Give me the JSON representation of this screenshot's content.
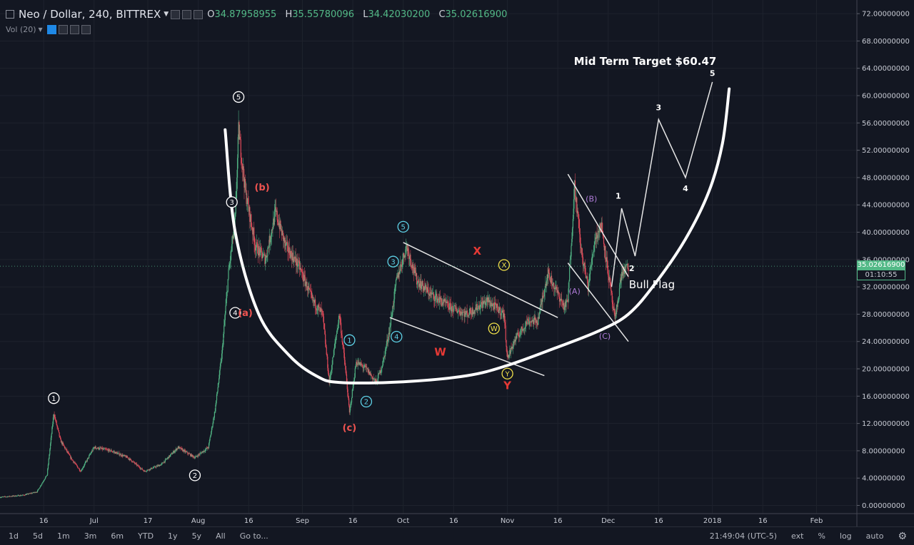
{
  "header": {
    "symbol": "Neo / Dollar, 240, BITTREX",
    "o_label": "O",
    "o_value": "34.87958955",
    "h_label": "H",
    "h_value": "35.55780096",
    "l_label": "L",
    "l_value": "34.42030200",
    "c_label": "C",
    "c_value": "35.02616900",
    "volume_label": "Vol (20)"
  },
  "price_tag": {
    "value": "35.02616900",
    "countdown": "01:10:55",
    "color": "#53b987"
  },
  "bottom_toolbar": {
    "timeframes": [
      "1d",
      "5d",
      "1m",
      "3m",
      "6m",
      "YTD",
      "1y",
      "5y",
      "All"
    ],
    "goto": "Go to...",
    "clock": "21:49:04 (UTC-5)",
    "options": [
      "ext",
      "%",
      "log",
      "auto"
    ]
  },
  "chart_data": {
    "type": "candlestick",
    "title": "Neo / Dollar, 240, BITTREX",
    "yaxis": {
      "ticks": [
        "72.00000000",
        "68.00000000",
        "64.00000000",
        "60.00000000",
        "56.00000000",
        "52.00000000",
        "48.00000000",
        "44.00000000",
        "40.00000000",
        "36.00000000",
        "32.00000000",
        "28.00000000",
        "24.00000000",
        "20.00000000",
        "16.00000000",
        "12.00000000",
        "8.00000000",
        "4.00000000",
        "0.00000000"
      ],
      "tick_values": [
        72,
        68,
        64,
        60,
        56,
        52,
        48,
        44,
        40,
        36,
        32,
        28,
        24,
        20,
        16,
        12,
        8,
        4,
        0
      ],
      "range": [
        -1.2,
        74
      ]
    },
    "xaxis": {
      "ticks": [
        "16",
        "Jul",
        "17",
        "Aug",
        "16",
        "Sep",
        "16",
        "Oct",
        "16",
        "Nov",
        "16",
        "Dec",
        "16",
        "2018",
        "16",
        "Feb"
      ],
      "tick_dates": [
        "2017-06-16",
        "2017-07-01",
        "2017-07-17",
        "2017-08-01",
        "2017-08-16",
        "2017-09-01",
        "2017-09-16",
        "2017-10-01",
        "2017-10-16",
        "2017-11-01",
        "2017-11-16",
        "2017-12-01",
        "2017-12-16",
        "2018-01-01",
        "2018-01-16",
        "2018-02-01"
      ],
      "range": [
        "2017-06-03",
        "2018-02-13"
      ]
    },
    "price_path": [
      [
        "2017-06-03",
        1.2
      ],
      [
        "2017-06-10",
        1.5
      ],
      [
        "2017-06-14",
        2.0
      ],
      [
        "2017-06-17",
        4.5
      ],
      [
        "2017-06-19",
        13.5
      ],
      [
        "2017-06-21",
        9.5
      ],
      [
        "2017-06-24",
        7.0
      ],
      [
        "2017-06-27",
        5.0
      ],
      [
        "2017-07-01",
        8.5
      ],
      [
        "2017-07-06",
        8.0
      ],
      [
        "2017-07-11",
        7.0
      ],
      [
        "2017-07-16",
        5.0
      ],
      [
        "2017-07-21",
        6.0
      ],
      [
        "2017-07-26",
        8.5
      ],
      [
        "2017-07-31",
        7.0
      ],
      [
        "2017-08-04",
        8.5
      ],
      [
        "2017-08-06",
        14.0
      ],
      [
        "2017-08-08",
        22.0
      ],
      [
        "2017-08-10",
        34.0
      ],
      [
        "2017-08-12",
        42.0
      ],
      [
        "2017-08-13",
        55.0
      ],
      [
        "2017-08-15",
        46.0
      ],
      [
        "2017-08-18",
        38.0
      ],
      [
        "2017-08-21",
        36.0
      ],
      [
        "2017-08-24",
        43.0
      ],
      [
        "2017-08-27",
        38.0
      ],
      [
        "2017-08-31",
        35.0
      ],
      [
        "2017-09-04",
        30.0
      ],
      [
        "2017-09-07",
        28.0
      ],
      [
        "2017-09-09",
        18.0
      ],
      [
        "2017-09-12",
        28.0
      ],
      [
        "2017-09-14",
        19.0
      ],
      [
        "2017-09-15",
        13.5
      ],
      [
        "2017-09-17",
        21.0
      ],
      [
        "2017-09-20",
        20.0
      ],
      [
        "2017-09-23",
        18.0
      ],
      [
        "2017-09-25",
        21.0
      ],
      [
        "2017-09-27",
        26.0
      ],
      [
        "2017-09-29",
        33.0
      ],
      [
        "2017-10-02",
        38.0
      ],
      [
        "2017-10-05",
        33.0
      ],
      [
        "2017-10-09",
        31.0
      ],
      [
        "2017-10-15",
        29.0
      ],
      [
        "2017-10-20",
        28.0
      ],
      [
        "2017-10-26",
        30.0
      ],
      [
        "2017-10-31",
        28.0
      ],
      [
        "2017-11-01",
        21.5
      ],
      [
        "2017-11-03",
        24.0
      ],
      [
        "2017-11-07",
        27.0
      ],
      [
        "2017-11-10",
        27.0
      ],
      [
        "2017-11-13",
        34.0
      ],
      [
        "2017-11-16",
        31.0
      ],
      [
        "2017-11-18",
        29.0
      ],
      [
        "2017-11-19",
        30.0
      ],
      [
        "2017-11-21",
        47.0
      ],
      [
        "2017-11-23",
        37.0
      ],
      [
        "2017-11-25",
        32.0
      ],
      [
        "2017-11-27",
        39.0
      ],
      [
        "2017-11-29",
        41.0
      ],
      [
        "2017-12-01",
        34.0
      ],
      [
        "2017-12-03",
        27.0
      ],
      [
        "2017-12-05",
        34.0
      ],
      [
        "2017-12-07",
        35.0
      ]
    ],
    "annotations": [
      {
        "text": "1",
        "date": "2017-06-19",
        "price": 15.7,
        "style": "circle-white"
      },
      {
        "text": "2",
        "date": "2017-07-31",
        "price": 4.4,
        "style": "circle-white"
      },
      {
        "text": "3",
        "date": "2017-08-11",
        "price": 44.4,
        "style": "circle-white"
      },
      {
        "text": "4",
        "date": "2017-08-12",
        "price": 28.2,
        "style": "circle-white"
      },
      {
        "text": "5",
        "date": "2017-08-13",
        "price": 59.8,
        "style": "circle-white"
      },
      {
        "text": "(a)",
        "date": "2017-08-15",
        "price": 28.2,
        "style": "red"
      },
      {
        "text": "(b)",
        "date": "2017-08-20",
        "price": 46.6,
        "style": "red"
      },
      {
        "text": "(c)",
        "date": "2017-09-15",
        "price": 11.4,
        "style": "red"
      },
      {
        "text": "1",
        "date": "2017-09-15",
        "price": 24.2,
        "style": "circle-cyan"
      },
      {
        "text": "2",
        "date": "2017-09-20",
        "price": 15.2,
        "style": "circle-cyan"
      },
      {
        "text": "3",
        "date": "2017-09-28",
        "price": 35.7,
        "style": "circle-cyan"
      },
      {
        "text": "4",
        "date": "2017-09-29",
        "price": 24.7,
        "style": "circle-cyan"
      },
      {
        "text": "5",
        "date": "2017-10-01",
        "price": 40.8,
        "style": "circle-cyan"
      },
      {
        "text": "X",
        "date": "2017-10-23",
        "price": 37.3,
        "style": "red-bold"
      },
      {
        "text": "X",
        "date": "2017-10-31",
        "price": 35.2,
        "style": "circle-yellow"
      },
      {
        "text": "W",
        "date": "2017-10-12",
        "price": 22.5,
        "style": "red-bold"
      },
      {
        "text": "W",
        "date": "2017-10-28",
        "price": 25.9,
        "style": "circle-yellow"
      },
      {
        "text": "Y",
        "date": "2017-11-01",
        "price": 19.3,
        "style": "circle-yellow"
      },
      {
        "text": "Y",
        "date": "2017-11-01",
        "price": 17.6,
        "style": "red-bold"
      },
      {
        "text": "(A)",
        "date": "2017-11-21",
        "price": 31.4,
        "style": "purple"
      },
      {
        "text": "(B)",
        "date": "2017-11-26",
        "price": 44.9,
        "style": "purple"
      },
      {
        "text": "(C)",
        "date": "2017-11-30",
        "price": 24.8,
        "style": "purple"
      },
      {
        "text": "1",
        "date": "2017-12-04",
        "price": 45.3,
        "style": "white-bold"
      },
      {
        "text": "2",
        "date": "2017-12-08",
        "price": 34.7,
        "style": "white-bold"
      },
      {
        "text": "3",
        "date": "2017-12-16",
        "price": 58.3,
        "style": "white-bold"
      },
      {
        "text": "4",
        "date": "2017-12-24",
        "price": 46.4,
        "style": "white-bold"
      },
      {
        "text": "5",
        "date": "2018-01-01",
        "price": 63.3,
        "style": "white-bold"
      }
    ],
    "projection_path": [
      [
        "2017-12-02",
        32.0
      ],
      [
        "2017-12-05",
        43.5
      ],
      [
        "2017-12-09",
        36.5
      ],
      [
        "2017-12-16",
        56.5
      ],
      [
        "2017-12-24",
        48.0
      ],
      [
        "2018-01-01",
        62.0
      ]
    ],
    "trend_lines": [
      [
        [
          "2017-10-01",
          38.5
        ],
        [
          "2017-11-16",
          27.5
        ]
      ],
      [
        [
          "2017-09-27",
          27.5
        ],
        [
          "2017-11-12",
          19.0
        ]
      ],
      [
        [
          "2017-11-19",
          48.5
        ],
        [
          "2017-12-07",
          33.5
        ]
      ],
      [
        [
          "2017-11-19",
          35.5
        ],
        [
          "2017-12-07",
          24.0
        ]
      ]
    ],
    "cup_curve": [
      [
        "2017-08-09",
        55.0
      ],
      [
        "2017-08-12",
        40.0
      ],
      [
        "2017-08-19",
        28.0
      ],
      [
        "2017-08-28",
        22.0
      ],
      [
        "2017-09-05",
        19.0
      ],
      [
        "2017-09-12",
        18.0
      ],
      [
        "2017-10-01",
        18.1
      ],
      [
        "2017-10-20",
        19.0
      ],
      [
        "2017-11-01",
        20.5
      ],
      [
        "2017-11-15",
        23.0
      ],
      [
        "2017-11-28",
        25.5
      ],
      [
        "2017-12-07",
        28.0
      ],
      [
        "2017-12-15",
        32.5
      ],
      [
        "2017-12-24",
        39.0
      ],
      [
        "2017-12-31",
        46.0
      ],
      [
        "2018-01-04",
        53.0
      ],
      [
        "2018-01-06",
        61.0
      ]
    ],
    "labels": [
      {
        "text": "Mid Term Target $60.47",
        "date": "2017-12-12",
        "price": 64.5
      },
      {
        "text": "Bull Flag",
        "date": "2017-12-14",
        "price": 31.8
      }
    ],
    "last_price": 35.026169
  }
}
